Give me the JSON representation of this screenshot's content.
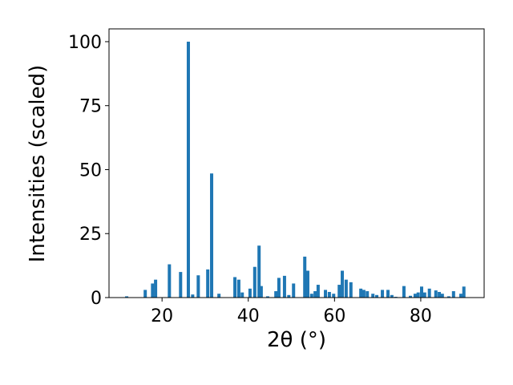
{
  "chart_data": {
    "type": "bar",
    "xlabel": "2θ (°)",
    "ylabel": "Intensities (scaled)",
    "color": "#1f77b4",
    "x": [
      11.8,
      16.1,
      17.8,
      18.5,
      21.7,
      24.3,
      26.1,
      27.1,
      28.4,
      30.6,
      31.5,
      33.2,
      36.9,
      37.8,
      38.6,
      40.4,
      41.5,
      42.5,
      43.0,
      44.5,
      46.4,
      47.1,
      48.4,
      49.4,
      50.5,
      53.1,
      53.8,
      54.7,
      55.5,
      56.2,
      57.9,
      58.8,
      59.8,
      61.1,
      61.8,
      62.7,
      63.8,
      66.1,
      66.8,
      67.6,
      68.9,
      69.8,
      71.1,
      72.4,
      73.3,
      74.2,
      76.1,
      77.6,
      78.7,
      79.4,
      80.2,
      80.9,
      82.0,
      83.5,
      84.3,
      85.0,
      86.5,
      87.6,
      89.3,
      90.0
    ],
    "values": [
      0.5,
      3,
      5.5,
      7,
      13,
      10,
      100,
      1.2,
      8.7,
      11,
      48.5,
      1.5,
      8,
      7,
      2,
      3.5,
      12,
      20.3,
      4.5,
      0.5,
      2.5,
      7.7,
      8.5,
      1,
      5.5,
      16,
      10.5,
      1.5,
      2.5,
      5,
      3,
      2.2,
      1.5,
      5,
      10.5,
      7,
      6,
      3.5,
      3,
      2.5,
      1.5,
      1,
      3,
      3,
      1,
      0.3,
      4.5,
      0.7,
      1.5,
      2,
      4.3,
      2,
      3.5,
      2.8,
      2.2,
      1.5,
      0.5,
      2.5,
      1.5,
      4.3
    ],
    "xlim": [
      7.7,
      94.7
    ],
    "xticks": [
      20,
      40,
      60,
      80
    ],
    "ylim": [
      0,
      105
    ],
    "yticks": [
      0,
      25,
      50,
      75,
      100
    ]
  }
}
